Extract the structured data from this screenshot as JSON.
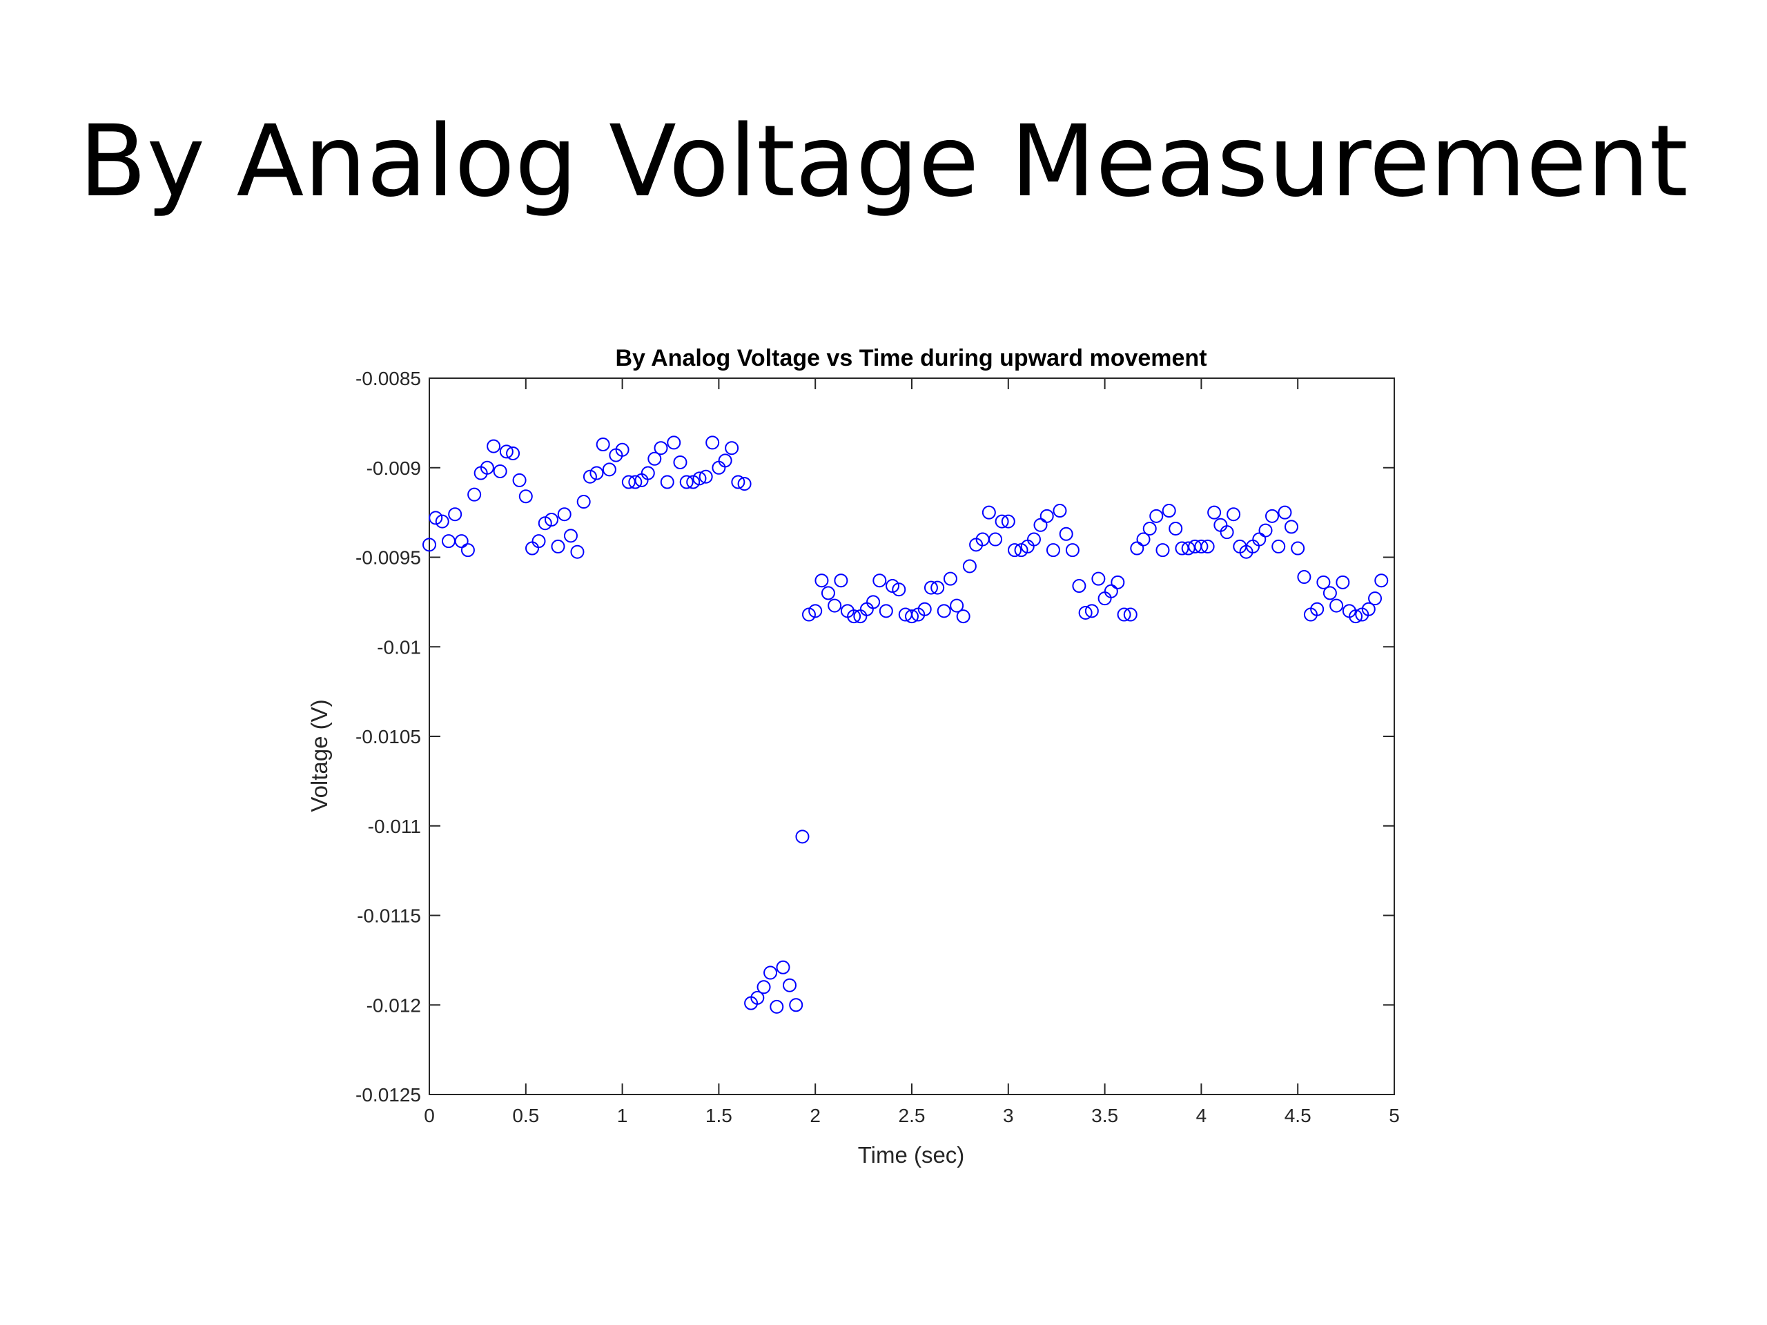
{
  "slide": {
    "title": "By Analog Voltage Measurement"
  },
  "chart_data": {
    "type": "scatter",
    "title": "By Analog Voltage vs Time during upward movement",
    "xlabel": "Time (sec)",
    "ylabel": "Voltage (V)",
    "xlim": [
      0,
      5
    ],
    "ylim": [
      -0.0125,
      -0.0085
    ],
    "xticks": [
      0,
      0.5,
      1,
      1.5,
      2,
      2.5,
      3,
      3.5,
      4,
      4.5,
      5
    ],
    "xtick_labels": [
      "0",
      "0.5",
      "1",
      "1.5",
      "2",
      "2.5",
      "3",
      "3.5",
      "4",
      "4.5",
      "5"
    ],
    "yticks": [
      -0.0085,
      -0.009,
      -0.0095,
      -0.01,
      -0.0105,
      -0.011,
      -0.0115,
      -0.012,
      -0.0125
    ],
    "ytick_labels": [
      "-0.0085",
      "-0.009",
      "-0.0095",
      "-0.01",
      "-0.0105",
      "-0.011",
      "-0.0115",
      "-0.012",
      "-0.0125"
    ],
    "grid": false,
    "marker": "open-circle",
    "color": "#0000ff",
    "points": [
      [
        0.0,
        -0.00943
      ],
      [
        0.033,
        -0.00928
      ],
      [
        0.067,
        -0.0093
      ],
      [
        0.1,
        -0.00941
      ],
      [
        0.133,
        -0.00926
      ],
      [
        0.167,
        -0.00941
      ],
      [
        0.2,
        -0.00946
      ],
      [
        0.233,
        -0.00915
      ],
      [
        0.267,
        -0.00903
      ],
      [
        0.3,
        -0.009
      ],
      [
        0.333,
        -0.00888
      ],
      [
        0.367,
        -0.00902
      ],
      [
        0.4,
        -0.00891
      ],
      [
        0.433,
        -0.00892
      ],
      [
        0.467,
        -0.00907
      ],
      [
        0.5,
        -0.00916
      ],
      [
        0.533,
        -0.00945
      ],
      [
        0.567,
        -0.00941
      ],
      [
        0.6,
        -0.00931
      ],
      [
        0.633,
        -0.00929
      ],
      [
        0.667,
        -0.00944
      ],
      [
        0.7,
        -0.00926
      ],
      [
        0.733,
        -0.00938
      ],
      [
        0.767,
        -0.00947
      ],
      [
        0.8,
        -0.00919
      ],
      [
        0.833,
        -0.00905
      ],
      [
        0.867,
        -0.00903
      ],
      [
        0.9,
        -0.00887
      ],
      [
        0.933,
        -0.00901
      ],
      [
        0.967,
        -0.00893
      ],
      [
        1.0,
        -0.0089
      ],
      [
        1.033,
        -0.00908
      ],
      [
        1.067,
        -0.00908
      ],
      [
        1.1,
        -0.00907
      ],
      [
        1.133,
        -0.00903
      ],
      [
        1.167,
        -0.00895
      ],
      [
        1.2,
        -0.00889
      ],
      [
        1.233,
        -0.00908
      ],
      [
        1.267,
        -0.00886
      ],
      [
        1.3,
        -0.00897
      ],
      [
        1.333,
        -0.00908
      ],
      [
        1.367,
        -0.00908
      ],
      [
        1.4,
        -0.00906
      ],
      [
        1.433,
        -0.00905
      ],
      [
        1.467,
        -0.00886
      ],
      [
        1.5,
        -0.009
      ],
      [
        1.533,
        -0.00896
      ],
      [
        1.567,
        -0.00889
      ],
      [
        1.6,
        -0.00908
      ],
      [
        1.633,
        -0.00909
      ],
      [
        1.667,
        -0.01199
      ],
      [
        1.7,
        -0.01196
      ],
      [
        1.733,
        -0.0119
      ],
      [
        1.767,
        -0.01182
      ],
      [
        1.8,
        -0.01201
      ],
      [
        1.833,
        -0.01179
      ],
      [
        1.867,
        -0.01189
      ],
      [
        1.9,
        -0.012
      ],
      [
        1.933,
        -0.01106
      ],
      [
        1.967,
        -0.00982
      ],
      [
        2.0,
        -0.0098
      ],
      [
        2.033,
        -0.00963
      ],
      [
        2.067,
        -0.0097
      ],
      [
        2.1,
        -0.00977
      ],
      [
        2.133,
        -0.00963
      ],
      [
        2.167,
        -0.0098
      ],
      [
        2.2,
        -0.00983
      ],
      [
        2.233,
        -0.00983
      ],
      [
        2.267,
        -0.00979
      ],
      [
        2.3,
        -0.00975
      ],
      [
        2.333,
        -0.00963
      ],
      [
        2.367,
        -0.0098
      ],
      [
        2.4,
        -0.00966
      ],
      [
        2.433,
        -0.00968
      ],
      [
        2.467,
        -0.00982
      ],
      [
        2.5,
        -0.00983
      ],
      [
        2.533,
        -0.00982
      ],
      [
        2.567,
        -0.00979
      ],
      [
        2.6,
        -0.00967
      ],
      [
        2.633,
        -0.00967
      ],
      [
        2.667,
        -0.0098
      ],
      [
        2.7,
        -0.00962
      ],
      [
        2.733,
        -0.00977
      ],
      [
        2.767,
        -0.00983
      ],
      [
        2.8,
        -0.00955
      ],
      [
        2.833,
        -0.00943
      ],
      [
        2.867,
        -0.0094
      ],
      [
        2.9,
        -0.00925
      ],
      [
        2.933,
        -0.0094
      ],
      [
        2.967,
        -0.0093
      ],
      [
        3.0,
        -0.0093
      ],
      [
        3.033,
        -0.00946
      ],
      [
        3.067,
        -0.00946
      ],
      [
        3.1,
        -0.00944
      ],
      [
        3.133,
        -0.0094
      ],
      [
        3.167,
        -0.00932
      ],
      [
        3.2,
        -0.00927
      ],
      [
        3.233,
        -0.00946
      ],
      [
        3.267,
        -0.00924
      ],
      [
        3.3,
        -0.00937
      ],
      [
        3.333,
        -0.00946
      ],
      [
        3.367,
        -0.00966
      ],
      [
        3.4,
        -0.00981
      ],
      [
        3.433,
        -0.0098
      ],
      [
        3.467,
        -0.00962
      ],
      [
        3.5,
        -0.00973
      ],
      [
        3.533,
        -0.00969
      ],
      [
        3.567,
        -0.00964
      ],
      [
        3.6,
        -0.00982
      ],
      [
        3.633,
        -0.00982
      ],
      [
        3.667,
        -0.00945
      ],
      [
        3.7,
        -0.0094
      ],
      [
        3.733,
        -0.00934
      ],
      [
        3.767,
        -0.00927
      ],
      [
        3.8,
        -0.00946
      ],
      [
        3.833,
        -0.00924
      ],
      [
        3.867,
        -0.00934
      ],
      [
        3.9,
        -0.00945
      ],
      [
        3.933,
        -0.00945
      ],
      [
        3.967,
        -0.00944
      ],
      [
        4.0,
        -0.00944
      ],
      [
        4.033,
        -0.00944
      ],
      [
        4.067,
        -0.00925
      ],
      [
        4.1,
        -0.00932
      ],
      [
        4.133,
        -0.00936
      ],
      [
        4.167,
        -0.00926
      ],
      [
        4.2,
        -0.00944
      ],
      [
        4.233,
        -0.00947
      ],
      [
        4.267,
        -0.00944
      ],
      [
        4.3,
        -0.0094
      ],
      [
        4.333,
        -0.00935
      ],
      [
        4.367,
        -0.00927
      ],
      [
        4.4,
        -0.00944
      ],
      [
        4.433,
        -0.00925
      ],
      [
        4.467,
        -0.00933
      ],
      [
        4.5,
        -0.00945
      ],
      [
        4.533,
        -0.00961
      ],
      [
        4.567,
        -0.00982
      ],
      [
        4.6,
        -0.00979
      ],
      [
        4.633,
        -0.00964
      ],
      [
        4.667,
        -0.0097
      ],
      [
        4.7,
        -0.00977
      ],
      [
        4.733,
        -0.00964
      ],
      [
        4.767,
        -0.0098
      ],
      [
        4.8,
        -0.00983
      ],
      [
        4.833,
        -0.00982
      ],
      [
        4.867,
        -0.00979
      ],
      [
        4.9,
        -0.00973
      ],
      [
        4.933,
        -0.00963
      ]
    ]
  }
}
